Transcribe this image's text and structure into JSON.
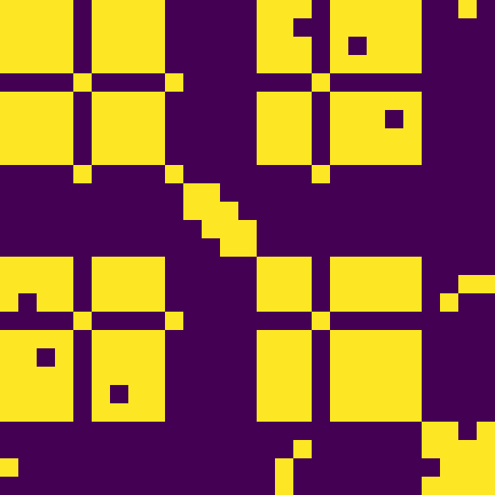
{
  "chart_data": {
    "type": "heatmap",
    "tick_labels": false,
    "colors": [
      "#440154",
      "#fde725"
    ],
    "cells": [
      [
        1,
        1,
        1,
        1,
        0,
        1,
        1,
        1,
        1,
        0,
        0,
        0,
        0,
        0,
        1,
        1,
        1,
        0,
        1,
        1,
        1,
        1,
        1,
        0,
        0,
        1,
        0
      ],
      [
        1,
        1,
        1,
        1,
        0,
        1,
        1,
        1,
        1,
        0,
        0,
        0,
        0,
        0,
        1,
        1,
        0,
        0,
        1,
        1,
        1,
        1,
        1,
        0,
        0,
        0,
        0
      ],
      [
        1,
        1,
        1,
        1,
        0,
        1,
        1,
        1,
        1,
        0,
        0,
        0,
        0,
        0,
        1,
        1,
        1,
        0,
        1,
        0,
        1,
        1,
        1,
        0,
        0,
        0,
        0
      ],
      [
        1,
        1,
        1,
        1,
        0,
        1,
        1,
        1,
        1,
        0,
        0,
        0,
        0,
        0,
        1,
        1,
        1,
        0,
        1,
        1,
        1,
        1,
        1,
        0,
        0,
        0,
        0
      ],
      [
        0,
        0,
        0,
        0,
        1,
        0,
        0,
        0,
        0,
        1,
        0,
        0,
        0,
        0,
        0,
        0,
        0,
        1,
        0,
        0,
        0,
        0,
        0,
        0,
        0,
        0,
        0
      ],
      [
        1,
        1,
        1,
        1,
        0,
        1,
        1,
        1,
        1,
        0,
        0,
        0,
        0,
        0,
        1,
        1,
        1,
        0,
        1,
        1,
        1,
        1,
        1,
        0,
        0,
        0,
        0
      ],
      [
        1,
        1,
        1,
        1,
        0,
        1,
        1,
        1,
        1,
        0,
        0,
        0,
        0,
        0,
        1,
        1,
        1,
        0,
        1,
        1,
        1,
        0,
        1,
        0,
        0,
        0,
        0
      ],
      [
        1,
        1,
        1,
        1,
        0,
        1,
        1,
        1,
        1,
        0,
        0,
        0,
        0,
        0,
        1,
        1,
        1,
        0,
        1,
        1,
        1,
        1,
        1,
        0,
        0,
        0,
        0
      ],
      [
        1,
        1,
        1,
        1,
        0,
        1,
        1,
        1,
        1,
        0,
        0,
        0,
        0,
        0,
        1,
        1,
        1,
        0,
        1,
        1,
        1,
        1,
        1,
        0,
        0,
        0,
        0
      ],
      [
        0,
        0,
        0,
        0,
        1,
        0,
        0,
        0,
        0,
        1,
        0,
        0,
        0,
        0,
        0,
        0,
        0,
        1,
        0,
        0,
        0,
        0,
        0,
        0,
        0,
        0,
        0
      ],
      [
        0,
        0,
        0,
        0,
        0,
        0,
        0,
        0,
        0,
        0,
        1,
        1,
        0,
        0,
        0,
        0,
        0,
        0,
        0,
        0,
        0,
        0,
        0,
        0,
        0,
        0,
        0
      ],
      [
        0,
        0,
        0,
        0,
        0,
        0,
        0,
        0,
        0,
        0,
        1,
        1,
        1,
        0,
        0,
        0,
        0,
        0,
        0,
        0,
        0,
        0,
        0,
        0,
        0,
        0,
        0
      ],
      [
        0,
        0,
        0,
        0,
        0,
        0,
        0,
        0,
        0,
        0,
        0,
        1,
        1,
        1,
        0,
        0,
        0,
        0,
        0,
        0,
        0,
        0,
        0,
        0,
        0,
        0,
        0
      ],
      [
        0,
        0,
        0,
        0,
        0,
        0,
        0,
        0,
        0,
        0,
        0,
        0,
        1,
        1,
        0,
        0,
        0,
        0,
        0,
        0,
        0,
        0,
        0,
        0,
        0,
        0,
        0
      ],
      [
        1,
        1,
        1,
        1,
        0,
        1,
        1,
        1,
        1,
        0,
        0,
        0,
        0,
        0,
        1,
        1,
        1,
        0,
        1,
        1,
        1,
        1,
        1,
        0,
        0,
        0,
        0
      ],
      [
        1,
        1,
        1,
        1,
        0,
        1,
        1,
        1,
        1,
        0,
        0,
        0,
        0,
        0,
        1,
        1,
        1,
        0,
        1,
        1,
        1,
        1,
        1,
        0,
        0,
        1,
        1
      ],
      [
        1,
        0,
        1,
        1,
        0,
        1,
        1,
        1,
        1,
        0,
        0,
        0,
        0,
        0,
        1,
        1,
        1,
        0,
        1,
        1,
        1,
        1,
        1,
        0,
        1,
        0,
        0
      ],
      [
        0,
        0,
        0,
        0,
        1,
        0,
        0,
        0,
        0,
        1,
        0,
        0,
        0,
        0,
        0,
        0,
        0,
        1,
        0,
        0,
        0,
        0,
        0,
        0,
        0,
        0,
        0
      ],
      [
        1,
        1,
        1,
        1,
        0,
        1,
        1,
        1,
        1,
        0,
        0,
        0,
        0,
        0,
        1,
        1,
        1,
        0,
        1,
        1,
        1,
        1,
        1,
        0,
        0,
        0,
        0
      ],
      [
        1,
        1,
        0,
        1,
        0,
        1,
        1,
        1,
        1,
        0,
        0,
        0,
        0,
        0,
        1,
        1,
        1,
        0,
        1,
        1,
        1,
        1,
        1,
        0,
        0,
        0,
        0
      ],
      [
        1,
        1,
        1,
        1,
        0,
        1,
        1,
        1,
        1,
        0,
        0,
        0,
        0,
        0,
        1,
        1,
        1,
        0,
        1,
        1,
        1,
        1,
        1,
        0,
        0,
        0,
        0
      ],
      [
        1,
        1,
        1,
        1,
        0,
        1,
        0,
        1,
        1,
        0,
        0,
        0,
        0,
        0,
        1,
        1,
        1,
        0,
        1,
        1,
        1,
        1,
        1,
        0,
        0,
        0,
        0
      ],
      [
        1,
        1,
        1,
        1,
        0,
        1,
        1,
        1,
        1,
        0,
        0,
        0,
        0,
        0,
        1,
        1,
        1,
        0,
        1,
        1,
        1,
        1,
        1,
        0,
        0,
        0,
        0
      ],
      [
        0,
        0,
        0,
        0,
        0,
        0,
        0,
        0,
        0,
        0,
        0,
        0,
        0,
        0,
        0,
        0,
        0,
        0,
        0,
        0,
        0,
        0,
        0,
        1,
        1,
        0,
        1
      ],
      [
        0,
        0,
        0,
        0,
        0,
        0,
        0,
        0,
        0,
        0,
        0,
        0,
        0,
        0,
        0,
        0,
        1,
        0,
        0,
        0,
        0,
        0,
        0,
        1,
        1,
        1,
        1
      ],
      [
        1,
        0,
        0,
        0,
        0,
        0,
        0,
        0,
        0,
        0,
        0,
        0,
        0,
        0,
        0,
        1,
        0,
        0,
        0,
        0,
        0,
        0,
        0,
        0,
        1,
        1,
        1
      ],
      [
        0,
        0,
        0,
        0,
        0,
        0,
        0,
        0,
        0,
        0,
        0,
        0,
        0,
        0,
        0,
        1,
        0,
        0,
        0,
        0,
        0,
        0,
        0,
        1,
        1,
        1,
        1
      ]
    ]
  }
}
